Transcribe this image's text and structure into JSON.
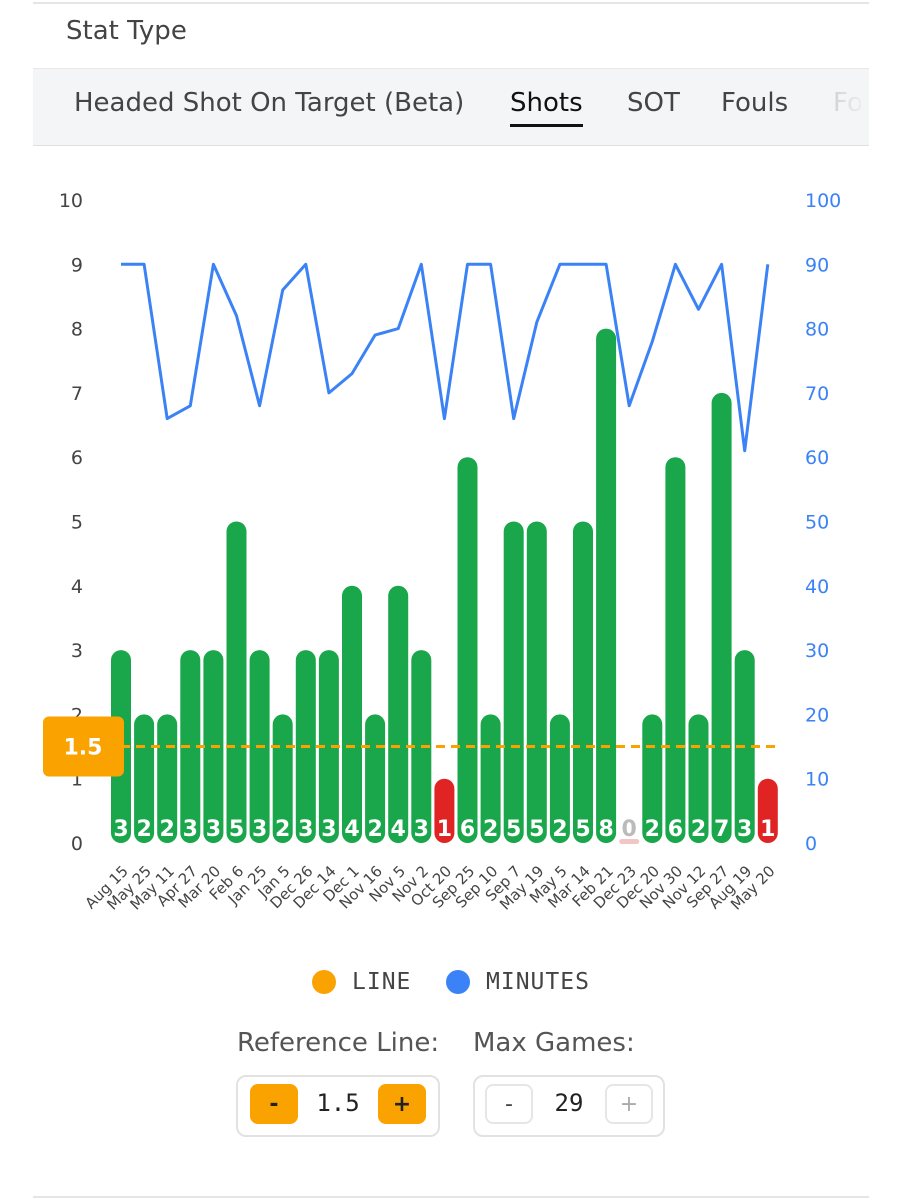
{
  "header": {
    "stat_type_label": "Stat Type"
  },
  "tabs": [
    {
      "label": "Headed Shot On Target (Beta)",
      "active": false
    },
    {
      "label": "Shots",
      "active": true
    },
    {
      "label": "SOT",
      "active": false
    },
    {
      "label": "Fouls",
      "active": false
    },
    {
      "label": "Fo",
      "active": false
    }
  ],
  "chart_data": {
    "type": "bar",
    "categories": [
      "Aug 15",
      "May 25",
      "May 11",
      "Apr 27",
      "Mar 20",
      "Feb 6",
      "Jan 25",
      "Jan 5",
      "Dec 26",
      "Dec 14",
      "Dec 1",
      "Nov 16",
      "Nov 5",
      "Nov 2",
      "Oct 20",
      "Sep 25",
      "Sep 10",
      "Sep 7",
      "May 19",
      "May 5",
      "Mar 14",
      "Feb 21",
      "Dec 23",
      "Dec 20",
      "Nov 30",
      "Nov 12",
      "Sep 27",
      "Aug 19",
      "May 20"
    ],
    "values": [
      3,
      2,
      2,
      3,
      3,
      5,
      3,
      2,
      3,
      3,
      4,
      2,
      4,
      3,
      1,
      6,
      2,
      5,
      5,
      2,
      5,
      8,
      0,
      2,
      6,
      2,
      7,
      3,
      1
    ],
    "minutes": [
      90,
      90,
      66,
      68,
      90,
      82,
      68,
      86,
      90,
      70,
      73,
      79,
      80,
      90,
      66,
      90,
      90,
      66,
      81,
      90,
      90,
      90,
      68,
      78,
      90,
      83,
      90,
      61,
      90
    ],
    "reference_line": 1.5,
    "y_left": {
      "min": 0,
      "max": 10,
      "ticks": [
        0,
        1,
        2,
        3,
        4,
        5,
        6,
        7,
        8,
        9,
        10
      ]
    },
    "y_right": {
      "min": 0,
      "max": 100,
      "ticks": [
        0,
        10,
        20,
        30,
        40,
        50,
        60,
        70,
        80,
        90,
        100
      ]
    },
    "colors": {
      "over": "#1aa64a",
      "under": "#e02424",
      "zero": "#f3c6c6",
      "line": "#f9a200",
      "minutes": "#3b82f6"
    },
    "legend": [
      {
        "label": "LINE",
        "color": "#f9a200"
      },
      {
        "label": "MINUTES",
        "color": "#3b82f6"
      }
    ]
  },
  "controls": {
    "reference_line": {
      "label": "Reference Line:",
      "value": "1.5",
      "minus": "-",
      "plus": "+"
    },
    "max_games": {
      "label": "Max Games:",
      "value": "29",
      "minus": "-",
      "plus": "+"
    }
  }
}
